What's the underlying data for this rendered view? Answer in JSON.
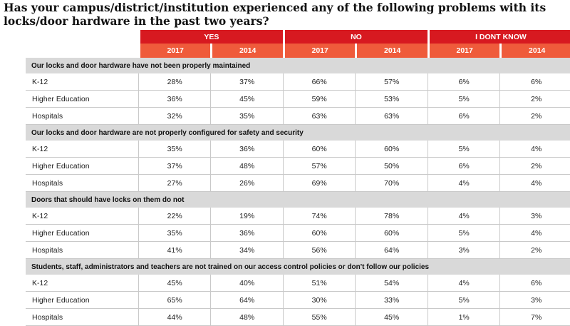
{
  "title": "Has your campus/district/institution experienced any of the following problems with its locks/door hardware in the past two years?",
  "groups": [
    "YES",
    "NO",
    "I DONT KNOW"
  ],
  "years": [
    "2017",
    "2014",
    "2017",
    "2014",
    "2017",
    "2014"
  ],
  "sections": [
    {
      "heading": "Our locks and door hardware have not been properly maintained",
      "rows": [
        {
          "label": "K-12",
          "values": [
            "28%",
            "37%",
            "66%",
            "57%",
            "6%",
            "6%"
          ]
        },
        {
          "label": "Higher Education",
          "values": [
            "36%",
            "45%",
            "59%",
            "53%",
            "5%",
            "2%"
          ]
        },
        {
          "label": "Hospitals",
          "values": [
            "32%",
            "35%",
            "63%",
            "63%",
            "6%",
            "2%"
          ]
        }
      ]
    },
    {
      "heading": "Our locks and door hardware are not properly configured for safety and security",
      "rows": [
        {
          "label": "K-12",
          "values": [
            "35%",
            "36%",
            "60%",
            "60%",
            "5%",
            "4%"
          ]
        },
        {
          "label": "Higher Education",
          "values": [
            "37%",
            "48%",
            "57%",
            "50%",
            "6%",
            "2%"
          ]
        },
        {
          "label": "Hospitals",
          "values": [
            "27%",
            "26%",
            "69%",
            "70%",
            "4%",
            "4%"
          ]
        }
      ]
    },
    {
      "heading": "Doors that should have locks on them do not",
      "rows": [
        {
          "label": "K-12",
          "values": [
            "22%",
            "19%",
            "74%",
            "78%",
            "4%",
            "3%"
          ]
        },
        {
          "label": "Higher Education",
          "values": [
            "35%",
            "36%",
            "60%",
            "60%",
            "5%",
            "4%"
          ]
        },
        {
          "label": "Hospitals",
          "values": [
            "41%",
            "34%",
            "56%",
            "64%",
            "3%",
            "2%"
          ]
        }
      ]
    },
    {
      "heading": "Students, staff, administrators and teachers are not trained on our access control policies or don't follow our policies",
      "rows": [
        {
          "label": "K-12",
          "values": [
            "45%",
            "40%",
            "51%",
            "54%",
            "4%",
            "6%"
          ]
        },
        {
          "label": "Higher Education",
          "values": [
            "65%",
            "64%",
            "30%",
            "33%",
            "5%",
            "3%"
          ]
        },
        {
          "label": "Hospitals",
          "values": [
            "44%",
            "48%",
            "55%",
            "45%",
            "1%",
            "7%"
          ]
        }
      ]
    }
  ]
}
